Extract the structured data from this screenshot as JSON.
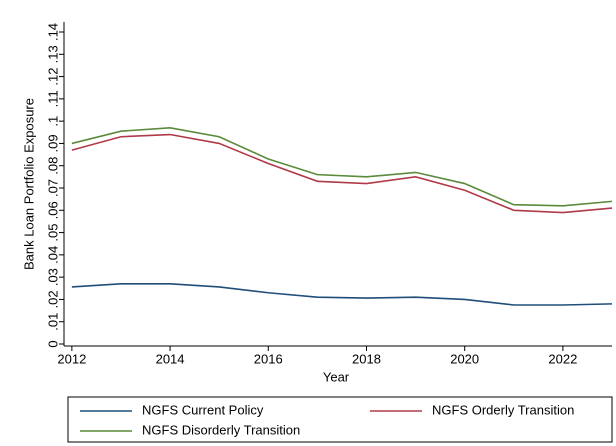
{
  "chart_data": {
    "type": "line",
    "x_label": "Year",
    "y_label": "Bank Loan Portfolio Exposure",
    "x": [
      2012,
      2013,
      2014,
      2015,
      2016,
      2017,
      2018,
      2019,
      2020,
      2021,
      2022,
      2023
    ],
    "series": [
      {
        "name": "NGFS Current Policy",
        "color": "#1f4e79",
        "values": [
          0.0256,
          0.027,
          0.027,
          0.0256,
          0.023,
          0.021,
          0.0206,
          0.021,
          0.02,
          0.0175,
          0.0175,
          0.018
        ]
      },
      {
        "name": "NGFS Orderly Transition",
        "color": "#b03a48",
        "values": [
          0.087,
          0.093,
          0.094,
          0.09,
          0.081,
          0.073,
          0.072,
          0.075,
          0.069,
          0.06,
          0.059,
          0.061
        ]
      },
      {
        "name": "NGFS Disorderly Transition",
        "color": "#5a8a3a",
        "values": [
          0.09,
          0.0955,
          0.097,
          0.093,
          0.083,
          0.076,
          0.075,
          0.077,
          0.072,
          0.0625,
          0.062,
          0.064
        ]
      }
    ],
    "xlim": [
      2011.84,
      2023
    ],
    "xticks": [
      2012,
      2014,
      2016,
      2018,
      2020,
      2022
    ],
    "ylim": [
      0,
      0.14
    ],
    "yticks": [
      0,
      {
        "value": 0.01,
        "label": ".01"
      },
      {
        "value": 0.02,
        "label": ".02"
      },
      {
        "value": 0.03,
        "label": ".03"
      },
      {
        "value": 0.04,
        "label": ".04"
      },
      {
        "value": 0.05,
        "label": ".05"
      },
      {
        "value": 0.06,
        "label": ".06"
      },
      {
        "value": 0.07,
        "label": ".07"
      },
      {
        "value": 0.08,
        "label": ".08"
      },
      {
        "value": 0.09,
        "label": ".09"
      },
      {
        "value": 0.1,
        "label": ".1"
      },
      {
        "value": 0.11,
        "label": ".11"
      },
      {
        "value": 0.12,
        "label": ".12"
      },
      {
        "value": 0.13,
        "label": ".13"
      },
      {
        "value": 0.14,
        "label": ".14"
      }
    ],
    "grid": false
  }
}
